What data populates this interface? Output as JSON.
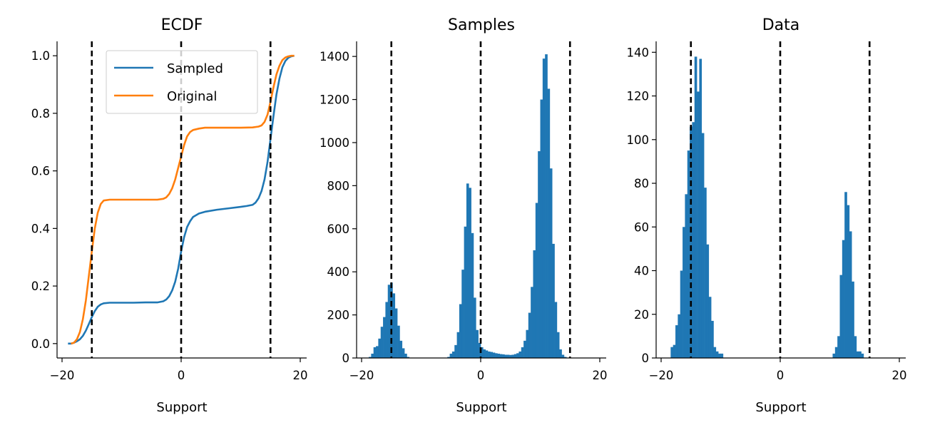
{
  "chart_data": [
    {
      "type": "line",
      "title": "ECDF",
      "xlabel": "Support",
      "ylabel": "",
      "xlim": [
        -20,
        20
      ],
      "ylim": [
        -0.05,
        1.05
      ],
      "xticks": [
        -20,
        0,
        20
      ],
      "xtick_labels": [
        "−20",
        "0",
        "20"
      ],
      "yticks": [
        0.0,
        0.2,
        0.4,
        0.6,
        0.8,
        1.0
      ],
      "ytick_labels": [
        "0.0",
        "0.2",
        "0.4",
        "0.6",
        "0.8",
        "1.0"
      ],
      "vlines": [
        -15,
        0,
        15
      ],
      "legend": {
        "placement": "upper-center",
        "entries": [
          "Sampled",
          "Original"
        ]
      },
      "series": [
        {
          "name": "Sampled",
          "color": "#1f77b4",
          "x": [
            -19,
            -18.5,
            -18,
            -17.5,
            -17,
            -16.5,
            -16,
            -15.5,
            -15,
            -14.5,
            -14,
            -13.5,
            -13,
            -12,
            -10,
            -8,
            -6,
            -4,
            -3,
            -2.5,
            -2,
            -1.5,
            -1,
            -0.5,
            0,
            0.5,
            1,
            1.5,
            2,
            3,
            4,
            6,
            8,
            10,
            11,
            12,
            12.5,
            13,
            13.5,
            14,
            14.5,
            15,
            15.5,
            16,
            16.5,
            17,
            17.5,
            18,
            18.5,
            19
          ],
          "y": [
            0,
            0,
            0.003,
            0.008,
            0.015,
            0.027,
            0.045,
            0.068,
            0.092,
            0.113,
            0.128,
            0.136,
            0.14,
            0.142,
            0.142,
            0.142,
            0.143,
            0.143,
            0.147,
            0.153,
            0.165,
            0.185,
            0.215,
            0.26,
            0.32,
            0.37,
            0.405,
            0.425,
            0.44,
            0.452,
            0.458,
            0.465,
            0.47,
            0.475,
            0.478,
            0.482,
            0.49,
            0.505,
            0.53,
            0.57,
            0.63,
            0.71,
            0.79,
            0.865,
            0.92,
            0.96,
            0.982,
            0.993,
            0.998,
            1.0
          ]
        },
        {
          "name": "Original",
          "color": "#ff7f0e",
          "x": [
            -18.5,
            -18,
            -17.5,
            -17,
            -16.5,
            -16,
            -15.5,
            -15,
            -14.5,
            -14,
            -13.5,
            -13,
            -12,
            -10,
            -8,
            -6,
            -4,
            -3,
            -2.5,
            -2,
            -1.5,
            -1,
            -0.5,
            0,
            0.5,
            1,
            1.5,
            2,
            3,
            4,
            6,
            8,
            10,
            12,
            13,
            13.5,
            14,
            14.5,
            15,
            15.5,
            16,
            16.5,
            17,
            17.5,
            18,
            18.5,
            19
          ],
          "y": [
            0,
            0.003,
            0.015,
            0.04,
            0.085,
            0.15,
            0.235,
            0.32,
            0.4,
            0.455,
            0.485,
            0.497,
            0.5,
            0.5,
            0.5,
            0.5,
            0.5,
            0.503,
            0.508,
            0.52,
            0.54,
            0.57,
            0.61,
            0.65,
            0.69,
            0.72,
            0.735,
            0.742,
            0.747,
            0.75,
            0.75,
            0.75,
            0.75,
            0.751,
            0.754,
            0.758,
            0.77,
            0.795,
            0.84,
            0.89,
            0.935,
            0.965,
            0.985,
            0.994,
            0.998,
            1.0,
            1.0
          ]
        }
      ]
    },
    {
      "type": "histogram",
      "title": "Samples",
      "xlabel": "Support",
      "ylabel": "",
      "xlim": [
        -20,
        20
      ],
      "ylim": [
        0,
        1470
      ],
      "xticks": [
        -20,
        0,
        20
      ],
      "xtick_labels": [
        "−20",
        "0",
        "20"
      ],
      "yticks": [
        0,
        200,
        400,
        600,
        800,
        1000,
        1200,
        1400
      ],
      "ytick_labels": [
        "0",
        "200",
        "400",
        "600",
        "800",
        "1000",
        "1200",
        "1400"
      ],
      "vlines": [
        -15,
        0,
        15
      ],
      "bar_color": "#1f77b4",
      "bin_start": -19.6,
      "bin_width": 0.4,
      "values": [
        0,
        0,
        5,
        20,
        50,
        55,
        90,
        145,
        190,
        260,
        340,
        350,
        300,
        230,
        150,
        80,
        45,
        20,
        5,
        0,
        0,
        0,
        0,
        0,
        0,
        0,
        0,
        0,
        0,
        0,
        0,
        0,
        0,
        0,
        0,
        5,
        20,
        30,
        60,
        120,
        250,
        410,
        610,
        810,
        790,
        580,
        280,
        130,
        70,
        50,
        40,
        35,
        30,
        28,
        25,
        22,
        20,
        18,
        17,
        15,
        15,
        14,
        15,
        18,
        22,
        30,
        50,
        80,
        130,
        210,
        330,
        500,
        720,
        960,
        1200,
        1390,
        1410,
        1250,
        880,
        530,
        260,
        120,
        40,
        15,
        5,
        0,
        0,
        0,
        0,
        0,
        0,
        0,
        0,
        0,
        0,
        0,
        0,
        0,
        0,
        0
      ]
    },
    {
      "type": "histogram",
      "title": "Data",
      "xlabel": "Support",
      "ylabel": "",
      "xlim": [
        -20,
        20
      ],
      "ylim": [
        0,
        145
      ],
      "xticks": [
        -20,
        0,
        20
      ],
      "xtick_labels": [
        "−20",
        "0",
        "20"
      ],
      "yticks": [
        0,
        20,
        40,
        60,
        80,
        100,
        120,
        140
      ],
      "ytick_labels": [
        "0",
        "20",
        "40",
        "60",
        "80",
        "100",
        "120",
        "140"
      ],
      "vlines": [
        -15,
        0,
        15
      ],
      "bar_color": "#1f77b4",
      "bin_start": -19.6,
      "bin_width": 0.4,
      "values": [
        0,
        0,
        0,
        5,
        6,
        15,
        20,
        40,
        60,
        75,
        95,
        106,
        108,
        138,
        122,
        137,
        103,
        78,
        52,
        28,
        17,
        5,
        3,
        2,
        2,
        0,
        0,
        0,
        0,
        0,
        0,
        0,
        0,
        0,
        0,
        0,
        0,
        0,
        0,
        0,
        0,
        0,
        0,
        0,
        0,
        0,
        0,
        0,
        0,
        0,
        0,
        0,
        0,
        0,
        0,
        0,
        0,
        0,
        0,
        0,
        0,
        0,
        0,
        0,
        0,
        0,
        0,
        0,
        0,
        0,
        0,
        2,
        5,
        10,
        38,
        54,
        76,
        70,
        58,
        35,
        10,
        3,
        3,
        2,
        0,
        0,
        0,
        0,
        0,
        0,
        0,
        0,
        0,
        0,
        0,
        0,
        0,
        0,
        0,
        0
      ]
    }
  ]
}
